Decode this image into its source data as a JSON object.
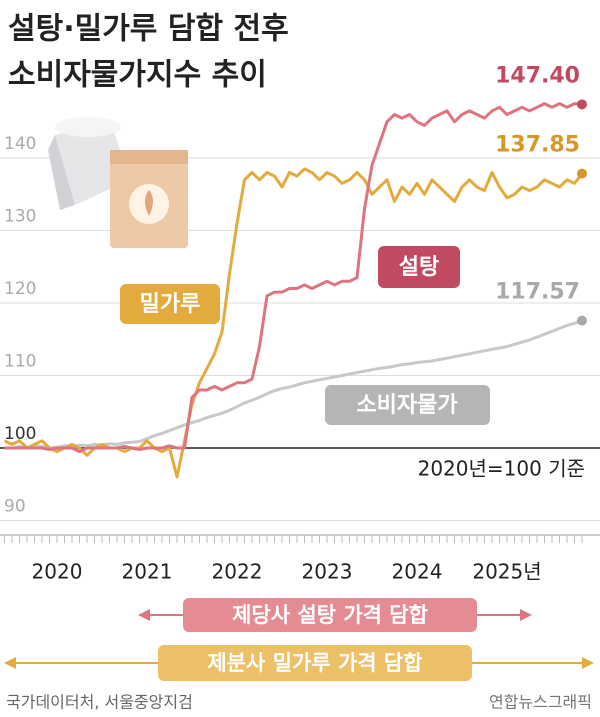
{
  "chart_data": {
    "type": "line",
    "title_lines": [
      "설탕·밀가루 담합 전후",
      "소비자물가지수 추이"
    ],
    "note": "2020년=100 기준",
    "annotations": [
      "제당사 설탕 가격 담합",
      "제분사 밀가루 가격 담합"
    ],
    "source": "국가데이터처, 서울중앙지검",
    "credit": "연합뉴스그래픽",
    "categories": [
      null,
      null,
      null,
      null,
      null,
      null,
      null,
      "2020",
      null,
      null,
      null,
      null,
      null,
      null,
      null,
      null,
      null,
      null,
      null,
      "2021",
      null,
      null,
      null,
      null,
      null,
      null,
      null,
      null,
      null,
      null,
      null,
      "2022",
      null,
      null,
      null,
      null,
      null,
      null,
      null,
      null,
      null,
      null,
      null,
      "2023",
      null,
      null,
      null,
      null,
      null,
      null,
      null,
      null,
      null,
      null,
      null,
      "2024",
      null,
      null,
      null,
      null,
      null,
      null,
      null,
      null,
      null,
      null,
      null,
      "2025년",
      null,
      null,
      null,
      null,
      null,
      null,
      null,
      null,
      null,
      null
    ],
    "ylim": [
      88,
      153
    ],
    "yticks": [
      90,
      100,
      110,
      120,
      130,
      140
    ],
    "grid": true,
    "series": [
      {
        "name": "설탕",
        "color": "#dd7480",
        "label_color": "#c24a60",
        "values": [
          100,
          100,
          100,
          100,
          100,
          100,
          99.8,
          100,
          100,
          100,
          99.5,
          100,
          100,
          100,
          100,
          100,
          100.2,
          100,
          99.8,
          100,
          100,
          100,
          100.3,
          100,
          100,
          107,
          108,
          108,
          108.5,
          108,
          108.5,
          109,
          109,
          109.5,
          114,
          121,
          121.5,
          121.5,
          122,
          122,
          122.5,
          122,
          122.5,
          123,
          122.5,
          123,
          123,
          123.5,
          133,
          139,
          142,
          145,
          146,
          145.5,
          146,
          145,
          144.5,
          145.5,
          146,
          146.5,
          145,
          146,
          146.5,
          146,
          145.5,
          146.5,
          147,
          146,
          146.5,
          147,
          146.5,
          147,
          147.5,
          147,
          147.5,
          147,
          147.5,
          147.4
        ],
        "value_labels": [
          null,
          null,
          null,
          null,
          null,
          null,
          null,
          null,
          null,
          null,
          null,
          null,
          null,
          null,
          null,
          null,
          null,
          null,
          null,
          null,
          null,
          null,
          null,
          null,
          null,
          null,
          null,
          null,
          null,
          null,
          null,
          null,
          null,
          null,
          null,
          null,
          null,
          null,
          null,
          null,
          null,
          null,
          null,
          null,
          null,
          null,
          null,
          null,
          null,
          null,
          null,
          null,
          null,
          null,
          null,
          null,
          null,
          null,
          null,
          null,
          null,
          null,
          null,
          null,
          null,
          null,
          null,
          null,
          null,
          null,
          null,
          null,
          null,
          null,
          null,
          null,
          null,
          "147.40"
        ]
      },
      {
        "name": "밀가루",
        "color": "#e3aa3e",
        "label_color": "#d8972a",
        "values": [
          101,
          100.5,
          101,
          100,
          100.5,
          101,
          100,
          99.5,
          100,
          100.5,
          100,
          99,
          100,
          100.5,
          100,
          100,
          99.5,
          100,
          100,
          101,
          100,
          99.5,
          100,
          96,
          101,
          106,
          109,
          111,
          113,
          116,
          124,
          131,
          137,
          138,
          137,
          138,
          137.5,
          136,
          138,
          137.5,
          138.5,
          138,
          137,
          138,
          137.5,
          136.5,
          137,
          138,
          137,
          135,
          136,
          137,
          134,
          136,
          135,
          136.5,
          135,
          137,
          136,
          135,
          134,
          136,
          137,
          136,
          135.5,
          138,
          136,
          134.5,
          135,
          136,
          135.5,
          136,
          137,
          136.5,
          136,
          137,
          136.5,
          137.85
        ],
        "value_labels": [
          null,
          null,
          null,
          null,
          null,
          null,
          null,
          null,
          null,
          null,
          null,
          null,
          null,
          null,
          null,
          null,
          null,
          null,
          null,
          null,
          null,
          null,
          null,
          null,
          null,
          null,
          null,
          null,
          null,
          null,
          null,
          null,
          null,
          null,
          null,
          null,
          null,
          null,
          null,
          null,
          null,
          null,
          null,
          null,
          null,
          null,
          null,
          null,
          null,
          null,
          null,
          null,
          null,
          null,
          null,
          null,
          null,
          null,
          null,
          null,
          null,
          null,
          null,
          null,
          null,
          null,
          null,
          null,
          null,
          null,
          null,
          null,
          null,
          null,
          null,
          null,
          null,
          "137.85"
        ]
      },
      {
        "name": "소비자물가",
        "color": "#c8c8c8",
        "label_color": "#a9a9a9",
        "values": [
          100,
          100,
          100.2,
          100,
          100.3,
          100.2,
          100,
          100.1,
          100.3,
          100.2,
          100.4,
          100.3,
          100.5,
          100.4,
          100.6,
          100.5,
          100.7,
          100.8,
          100.9,
          101.3,
          101.7,
          102,
          102.4,
          102.8,
          103.2,
          103.5,
          103.8,
          104.2,
          104.5,
          104.8,
          105.2,
          105.7,
          106.2,
          106.6,
          107,
          107.5,
          107.9,
          108.2,
          108.4,
          108.7,
          109,
          109.2,
          109.4,
          109.6,
          109.8,
          110,
          110.2,
          110.4,
          110.6,
          110.8,
          111,
          111.1,
          111.3,
          111.5,
          111.6,
          111.8,
          111.9,
          112,
          112.2,
          112.4,
          112.6,
          112.8,
          113,
          113.2,
          113.4,
          113.6,
          113.8,
          114,
          114.3,
          114.6,
          114.9,
          115.3,
          115.7,
          116.1,
          116.5,
          116.9,
          117.2,
          117.57
        ],
        "value_labels": [
          null,
          null,
          null,
          null,
          null,
          null,
          null,
          null,
          null,
          null,
          null,
          null,
          null,
          null,
          null,
          null,
          null,
          null,
          null,
          null,
          null,
          null,
          null,
          null,
          null,
          null,
          null,
          null,
          null,
          null,
          null,
          null,
          null,
          null,
          null,
          null,
          null,
          null,
          null,
          null,
          null,
          null,
          null,
          null,
          null,
          null,
          null,
          null,
          null,
          null,
          null,
          null,
          null,
          null,
          null,
          null,
          null,
          null,
          null,
          null,
          null,
          null,
          null,
          null,
          null,
          null,
          null,
          null,
          null,
          null,
          null,
          null,
          null,
          null,
          null,
          null,
          null,
          "117.57"
        ]
      }
    ]
  }
}
